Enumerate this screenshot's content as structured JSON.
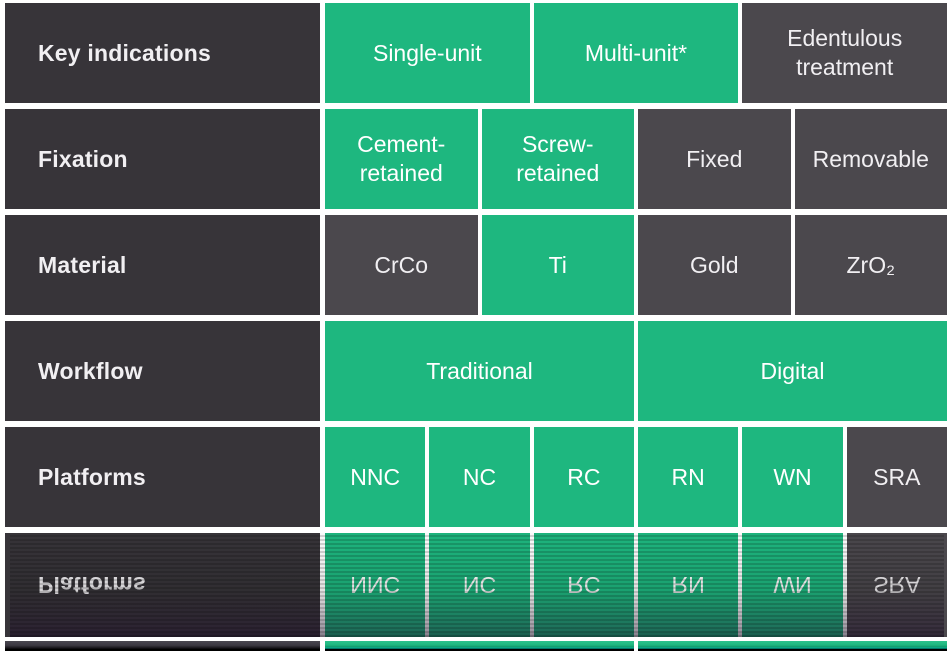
{
  "colors": {
    "green": "#1eb77f",
    "dark_label": "#373439",
    "dark_cell": "#4b484d",
    "text_light": "#ffffff",
    "background": "#ffffff"
  },
  "table": {
    "rows": [
      {
        "label": "Key indications",
        "cells": [
          {
            "text": "Single-unit",
            "highlighted": true
          },
          {
            "text": "Multi-unit*",
            "highlighted": true
          },
          {
            "text": "Edentulous treatment",
            "highlighted": false
          }
        ]
      },
      {
        "label": "Fixation",
        "cells": [
          {
            "text": "Cement-retained",
            "highlighted": true
          },
          {
            "text": "Screw-retained",
            "highlighted": true
          },
          {
            "text": "Fixed",
            "highlighted": false
          },
          {
            "text": "Removable",
            "highlighted": false
          }
        ]
      },
      {
        "label": "Material",
        "cells": [
          {
            "text": "CrCo",
            "highlighted": false
          },
          {
            "text": "Ti",
            "highlighted": true
          },
          {
            "text": "Gold",
            "highlighted": false
          },
          {
            "text": "ZrO₂",
            "highlighted": false
          }
        ]
      },
      {
        "label": "Workflow",
        "cells": [
          {
            "text": "Traditional",
            "highlighted": true
          },
          {
            "text": "Digital",
            "highlighted": true
          }
        ]
      },
      {
        "label": "Platforms",
        "cells": [
          {
            "text": "NNC",
            "highlighted": true
          },
          {
            "text": "NC",
            "highlighted": true
          },
          {
            "text": "RC",
            "highlighted": true
          },
          {
            "text": "RN",
            "highlighted": true
          },
          {
            "text": "WN",
            "highlighted": true
          },
          {
            "text": "SRA",
            "highlighted": false
          }
        ]
      }
    ]
  },
  "reflection": {
    "mirrored_row_label": "Platforms",
    "effect": "vertical-mirror-fade-to-black"
  }
}
